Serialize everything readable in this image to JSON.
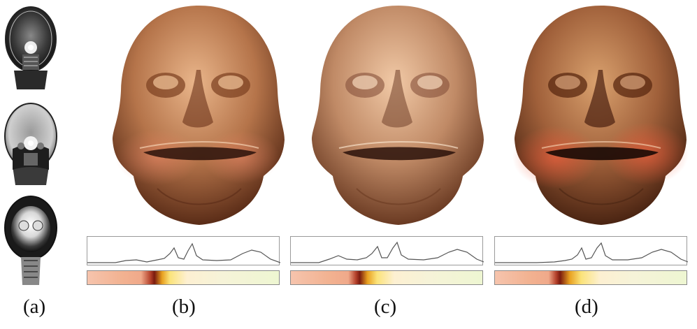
{
  "panels": [
    {
      "id": "a",
      "caption": "(a)"
    },
    {
      "id": "b",
      "caption": "(b)"
    },
    {
      "id": "c",
      "caption": "(c)"
    },
    {
      "id": "d",
      "caption": "(d)"
    }
  ],
  "colors": {
    "skin_light": "#e9b58a",
    "skin_mid": "#b5744a",
    "skin_dark": "#5a2c17",
    "blush": "#e8745a",
    "histogram_line": "#555555",
    "tf_dark_band": "#7a1b0f",
    "tf_yellow": "#fbe37a"
  }
}
